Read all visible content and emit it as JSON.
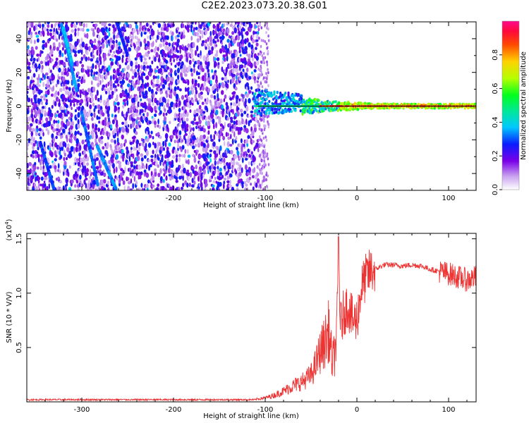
{
  "title": "C2E2.2023.073.20.38.G01",
  "chart_data": [
    {
      "type": "heatmap",
      "xlabel": "Height of straight line (km)",
      "ylabel": "Frequency (Hz)",
      "xlim": [
        -360,
        130
      ],
      "ylim": [
        -50,
        50
      ],
      "xticks": [
        "-300",
        "-200",
        "-100",
        "0",
        "100"
      ],
      "xtick_values": [
        -300,
        -200,
        -100,
        0,
        100
      ],
      "yticks": [
        "-40",
        "-20",
        "0",
        "20",
        "40"
      ],
      "ytick_values": [
        -40,
        -20,
        0,
        20,
        40
      ],
      "colorbar": {
        "label": "Normalized spectral amplitude",
        "ticks": [
          "0.0",
          "0.2",
          "0.4",
          "0.6",
          "0.8"
        ],
        "tick_values": [
          0.0,
          0.2,
          0.4,
          0.6,
          0.8
        ],
        "range": [
          0,
          1
        ]
      },
      "carrier_line": {
        "frequency_hz": 0,
        "x_from_km": -108,
        "x_to_km": 130
      },
      "noise_region_km": [
        -360,
        -108
      ]
    },
    {
      "type": "line",
      "xlabel": "Height of straight line (km)",
      "ylabel": "SNR (10 * V/V)",
      "yscale_note": "(x10",
      "yscale_exp": "4",
      "yscale_close": ")",
      "xlim": [
        -360,
        130
      ],
      "ylim": [
        0,
        1.55
      ],
      "xticks": [
        "-300",
        "-200",
        "-100",
        "0",
        "100"
      ],
      "xtick_values": [
        -300,
        -200,
        -100,
        0,
        100
      ],
      "yticks": [
        "0.5",
        "1.0",
        "1.5"
      ],
      "ytick_values": [
        0.5,
        1.0,
        1.5
      ],
      "color": "#ee3333",
      "series": [
        {
          "name": "SNR",
          "x": [
            -360,
            -300,
            -200,
            -150,
            -110,
            -100,
            -90,
            -80,
            -70,
            -60,
            -50,
            -45,
            -40,
            -35,
            -30,
            -26,
            -22,
            -20,
            -18,
            -15,
            -10,
            -5,
            0,
            5,
            10,
            15,
            20,
            25,
            30,
            40,
            50,
            60,
            70,
            80,
            90,
            100,
            110,
            120,
            130
          ],
          "y": [
            0.02,
            0.02,
            0.02,
            0.02,
            0.02,
            0.03,
            0.05,
            0.08,
            0.12,
            0.15,
            0.2,
            0.28,
            0.38,
            0.45,
            0.55,
            0.35,
            0.6,
            1.45,
            0.7,
            0.8,
            0.9,
            0.75,
            0.75,
            1.05,
            1.15,
            1.2,
            1.22,
            1.24,
            1.26,
            1.26,
            1.25,
            1.26,
            1.25,
            1.22,
            1.2,
            1.18,
            1.15,
            1.12,
            1.15
          ]
        }
      ]
    }
  ]
}
